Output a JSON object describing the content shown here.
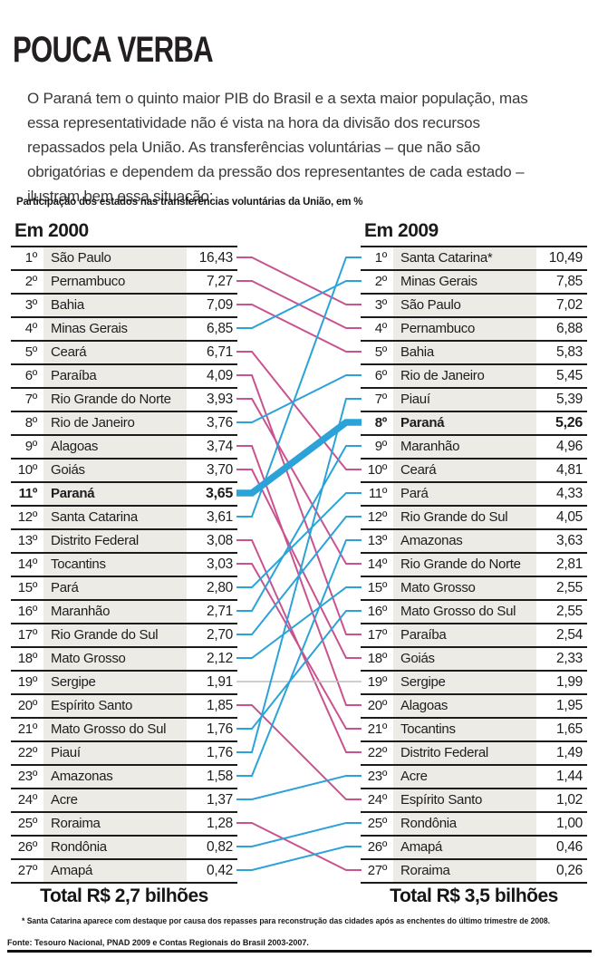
{
  "title": "POUCA VERBA",
  "intro": "O Paraná tem o quinto maior PIB do Brasil e a sexta maior população, mas essa representatividade não é vista na hora da divisão dos recursos repassados pela União. As transferências voluntárias – que não são obrigatórias e dependem da pressão dos representantes de cada estado – ilustram bem essa situação:",
  "chart_label": "Participação dos estados nas transferências voluntárias da União, em %",
  "chart_data": {
    "type": "slopegraph",
    "unit": "%",
    "highlight_state": "Paraná",
    "colors": {
      "up": "#2ba3d8",
      "down": "#c9538f",
      "same": "#bdbdbd"
    },
    "left": {
      "header": "Em 2000",
      "total": "Total R$ 2,7 bilhões",
      "rows": [
        {
          "rank": "1º",
          "state": "São Paulo",
          "value": "16,43"
        },
        {
          "rank": "2º",
          "state": "Pernambuco",
          "value": "7,27"
        },
        {
          "rank": "3º",
          "state": "Bahia",
          "value": "7,09"
        },
        {
          "rank": "4º",
          "state": "Minas Gerais",
          "value": "6,85"
        },
        {
          "rank": "5º",
          "state": "Ceará",
          "value": "6,71"
        },
        {
          "rank": "6º",
          "state": "Paraíba",
          "value": "4,09"
        },
        {
          "rank": "7º",
          "state": "Rio Grande do Norte",
          "value": "3,93"
        },
        {
          "rank": "8º",
          "state": "Rio de Janeiro",
          "value": "3,76"
        },
        {
          "rank": "9º",
          "state": "Alagoas",
          "value": "3,74"
        },
        {
          "rank": "10º",
          "state": "Goiás",
          "value": "3,70"
        },
        {
          "rank": "11º",
          "state": "Paraná",
          "value": "3,65",
          "bold": true
        },
        {
          "rank": "12º",
          "state": "Santa Catarina",
          "value": "3,61"
        },
        {
          "rank": "13º",
          "state": "Distrito Federal",
          "value": "3,08"
        },
        {
          "rank": "14º",
          "state": "Tocantins",
          "value": "3,03"
        },
        {
          "rank": "15º",
          "state": "Pará",
          "value": "2,80"
        },
        {
          "rank": "16º",
          "state": "Maranhão",
          "value": "2,71"
        },
        {
          "rank": "17º",
          "state": "Rio Grande do Sul",
          "value": "2,70"
        },
        {
          "rank": "18º",
          "state": "Mato Grosso",
          "value": "2,12"
        },
        {
          "rank": "19º",
          "state": "Sergipe",
          "value": "1,91"
        },
        {
          "rank": "20º",
          "state": "Espírito Santo",
          "value": "1,85"
        },
        {
          "rank": "21º",
          "state": "Mato Grosso do Sul",
          "value": "1,76"
        },
        {
          "rank": "22º",
          "state": "Piauí",
          "value": "1,76"
        },
        {
          "rank": "23º",
          "state": "Amazonas",
          "value": "1,58"
        },
        {
          "rank": "24º",
          "state": "Acre",
          "value": "1,37"
        },
        {
          "rank": "25º",
          "state": "Roraima",
          "value": "1,28"
        },
        {
          "rank": "26º",
          "state": "Rondônia",
          "value": "0,82"
        },
        {
          "rank": "27º",
          "state": "Amapá",
          "value": "0,42"
        }
      ]
    },
    "right": {
      "header": "Em 2009",
      "total": "Total R$ 3,5 bilhões",
      "rows": [
        {
          "rank": "1º",
          "state": "Santa Catarina*",
          "value": "10,49"
        },
        {
          "rank": "2º",
          "state": "Minas Gerais",
          "value": "7,85"
        },
        {
          "rank": "3º",
          "state": "São Paulo",
          "value": "7,02"
        },
        {
          "rank": "4º",
          "state": "Pernambuco",
          "value": "6,88"
        },
        {
          "rank": "5º",
          "state": "Bahia",
          "value": "5,83"
        },
        {
          "rank": "6º",
          "state": "Rio de Janeiro",
          "value": "5,45"
        },
        {
          "rank": "7º",
          "state": "Piauí",
          "value": "5,39"
        },
        {
          "rank": "8º",
          "state": "Paraná",
          "value": "5,26",
          "bold": true
        },
        {
          "rank": "9º",
          "state": "Maranhão",
          "value": "4,96"
        },
        {
          "rank": "10º",
          "state": "Ceará",
          "value": "4,81"
        },
        {
          "rank": "11º",
          "state": "Pará",
          "value": "4,33"
        },
        {
          "rank": "12º",
          "state": "Rio Grande do Sul",
          "value": "4,05"
        },
        {
          "rank": "13º",
          "state": "Amazonas",
          "value": "3,63"
        },
        {
          "rank": "14º",
          "state": "Rio Grande do Norte",
          "value": "2,81"
        },
        {
          "rank": "15º",
          "state": "Mato Grosso",
          "value": "2,55"
        },
        {
          "rank": "16º",
          "state": "Mato Grosso do Sul",
          "value": "2,55"
        },
        {
          "rank": "17º",
          "state": "Paraíba",
          "value": "2,54"
        },
        {
          "rank": "18º",
          "state": "Goiás",
          "value": "2,33"
        },
        {
          "rank": "19º",
          "state": "Sergipe",
          "value": "1,99"
        },
        {
          "rank": "20º",
          "state": "Alagoas",
          "value": "1,95"
        },
        {
          "rank": "21º",
          "state": "Tocantins",
          "value": "1,65"
        },
        {
          "rank": "22º",
          "state": "Distrito Federal",
          "value": "1,49"
        },
        {
          "rank": "23º",
          "state": "Acre",
          "value": "1,44"
        },
        {
          "rank": "24º",
          "state": "Espírito Santo",
          "value": "1,02"
        },
        {
          "rank": "25º",
          "state": "Rondônia",
          "value": "1,00"
        },
        {
          "rank": "26º",
          "state": "Amapá",
          "value": "0,46"
        },
        {
          "rank": "27º",
          "state": "Roraima",
          "value": "0,26"
        }
      ]
    },
    "links": [
      {
        "state": "São Paulo",
        "from": 1,
        "to": 3,
        "trend": "down"
      },
      {
        "state": "Pernambuco",
        "from": 2,
        "to": 4,
        "trend": "down"
      },
      {
        "state": "Bahia",
        "from": 3,
        "to": 5,
        "trend": "down"
      },
      {
        "state": "Minas Gerais",
        "from": 4,
        "to": 2,
        "trend": "up"
      },
      {
        "state": "Ceará",
        "from": 5,
        "to": 10,
        "trend": "down"
      },
      {
        "state": "Paraíba",
        "from": 6,
        "to": 17,
        "trend": "down"
      },
      {
        "state": "Rio Grande do Norte",
        "from": 7,
        "to": 14,
        "trend": "down"
      },
      {
        "state": "Rio de Janeiro",
        "from": 8,
        "to": 6,
        "trend": "up"
      },
      {
        "state": "Alagoas",
        "from": 9,
        "to": 20,
        "trend": "down"
      },
      {
        "state": "Goiás",
        "from": 10,
        "to": 18,
        "trend": "down"
      },
      {
        "state": "Santa Catarina",
        "from": 12,
        "to": 1,
        "trend": "up"
      },
      {
        "state": "Distrito Federal",
        "from": 13,
        "to": 22,
        "trend": "down"
      },
      {
        "state": "Tocantins",
        "from": 14,
        "to": 21,
        "trend": "down"
      },
      {
        "state": "Pará",
        "from": 15,
        "to": 11,
        "trend": "up"
      },
      {
        "state": "Maranhão",
        "from": 16,
        "to": 9,
        "trend": "up"
      },
      {
        "state": "Rio Grande do Sul",
        "from": 17,
        "to": 12,
        "trend": "up"
      },
      {
        "state": "Mato Grosso",
        "from": 18,
        "to": 15,
        "trend": "up"
      },
      {
        "state": "Sergipe",
        "from": 19,
        "to": 19,
        "trend": "same"
      },
      {
        "state": "Espírito Santo",
        "from": 20,
        "to": 24,
        "trend": "down"
      },
      {
        "state": "Mato Grosso do Sul",
        "from": 21,
        "to": 16,
        "trend": "up"
      },
      {
        "state": "Piauí",
        "from": 22,
        "to": 7,
        "trend": "up"
      },
      {
        "state": "Amazonas",
        "from": 23,
        "to": 13,
        "trend": "up"
      },
      {
        "state": "Acre",
        "from": 24,
        "to": 23,
        "trend": "up"
      },
      {
        "state": "Roraima",
        "from": 25,
        "to": 27,
        "trend": "down"
      },
      {
        "state": "Rondônia",
        "from": 26,
        "to": 25,
        "trend": "up"
      },
      {
        "state": "Amapá",
        "from": 27,
        "to": 26,
        "trend": "up"
      },
      {
        "state": "Paraná",
        "from": 11,
        "to": 8,
        "trend": "highlight"
      }
    ]
  },
  "footnote": "* Santa Catarina aparece com destaque por causa dos repasses para reconstrução das cidades após as enchentes do último trimestre de 2008.",
  "source": "Fonte: Tesouro Nacional, PNAD 2009 e Contas Regionais do Brasil 2003-2007."
}
